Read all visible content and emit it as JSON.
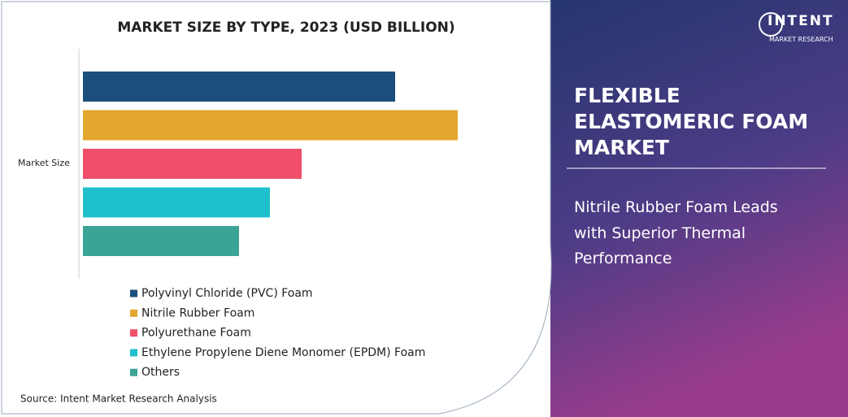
{
  "chart_data": {
    "type": "bar",
    "orientation": "horizontal",
    "title": "MARKET SIZE BY TYPE, 2023 (USD BILLION)",
    "categories": [
      "Market Size"
    ],
    "series": [
      {
        "name": "Polyvinyl Chloride (PVC) Foam",
        "color": "#1b4f7b",
        "values": [
          3.84
        ]
      },
      {
        "name": "Nitrile Rubber Foam",
        "color": "#e3a62e",
        "values": [
          4.61
        ]
      },
      {
        "name": "Polyurethane Foam",
        "color": "#ef4f6a",
        "values": [
          2.69
        ]
      },
      {
        "name": "Ethylene Propylene Diene Monomer (EPDM) Foam",
        "color": "#1ec0cc",
        "values": [
          2.3
        ]
      },
      {
        "name": "Others",
        "color": "#3aa597",
        "values": [
          1.92
        ]
      }
    ],
    "source": "Source: Intent Market Research Analysis"
  },
  "panel": {
    "logo": "INTENT",
    "logo_sub": "MARKET RESEARCH",
    "title": "FLEXIBLE ELASTOMERIC FOAM MARKET",
    "subtitle": "Nitrile Rubber Foam Leads with Superior Thermal Performance"
  }
}
